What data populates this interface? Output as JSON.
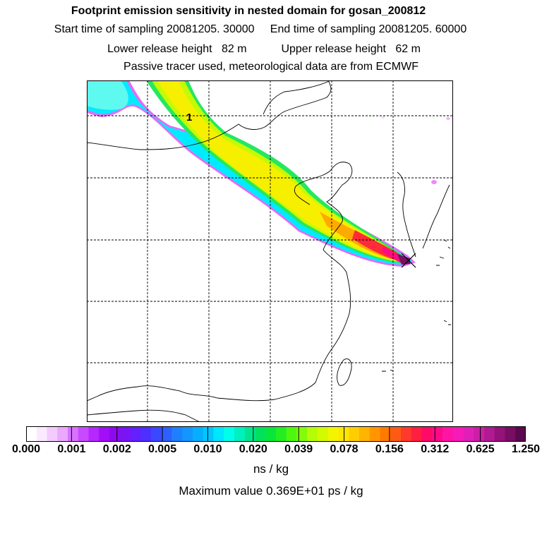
{
  "header": {
    "title": "Footprint emission sensitivity in nested domain for gosan_200812",
    "start_label": "Start time of sampling",
    "start_value": "20081205. 30000",
    "end_label": "End time of sampling",
    "end_value": "20081205. 60000",
    "lower_label": "Lower release height",
    "lower_value": "82 m",
    "upper_label": "Upper release height",
    "upper_value": "62 m",
    "note": "Passive tracer used, meteorological data are from ECMWF"
  },
  "map": {
    "contour_label": "1",
    "receptor_marker": "x-marker"
  },
  "colorbar": {
    "ticks": [
      "0.000",
      "0.001",
      "0.002",
      "0.005",
      "0.010",
      "0.020",
      "0.039",
      "0.078",
      "0.156",
      "0.312",
      "0.625",
      "1.250"
    ],
    "colors": [
      "#ffffff",
      "#fbeaff",
      "#f3cbff",
      "#eaa8ff",
      "#d873ff",
      "#c84aff",
      "#b528ff",
      "#a20ef7",
      "#8d0af0",
      "#7b14f3",
      "#6420ff",
      "#4d30ff",
      "#3a48ff",
      "#2e60ff",
      "#1f80ff",
      "#1396ff",
      "#06aeff",
      "#00c6ff",
      "#00e6ff",
      "#00ffea",
      "#00f0c0",
      "#00e68e",
      "#00e25e",
      "#08e63a",
      "#22ee22",
      "#4ef80e",
      "#84fb0a",
      "#b5fd06",
      "#d4fa00",
      "#f3f500",
      "#ffe600",
      "#ffcd00",
      "#ffb400",
      "#ff9600",
      "#ff7a00",
      "#ff5a14",
      "#ff3a2a",
      "#ff1f3e",
      "#ff0a66",
      "#ff0a86",
      "#ff14a6",
      "#f51bb8",
      "#e01fb8",
      "#cc1fa6",
      "#b01a92",
      "#94127a",
      "#780e64",
      "#5c084f"
    ],
    "units": "ns / kg"
  },
  "footer": {
    "max_label": "Maximum value",
    "max_value": "0.369E+01",
    "max_units": "ps / kg"
  }
}
